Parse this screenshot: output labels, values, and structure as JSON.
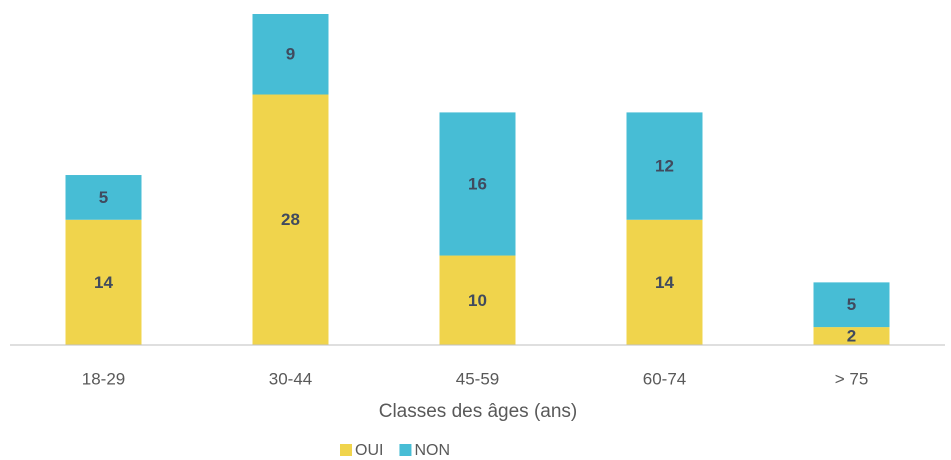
{
  "chart_data": {
    "type": "stacked_bar",
    "x_label": "Classes des âges (ans)",
    "categories": [
      "18-29",
      "30-44",
      "45-59",
      "60-74",
      "> 75"
    ],
    "series": [
      {
        "name": "OUI",
        "color": "#f0d44c",
        "values": [
          14,
          28,
          10,
          14,
          2
        ]
      },
      {
        "name": "NON",
        "color": "#47bdd5",
        "values": [
          5,
          9,
          16,
          12,
          5
        ]
      }
    ],
    "legend": "bottom"
  }
}
